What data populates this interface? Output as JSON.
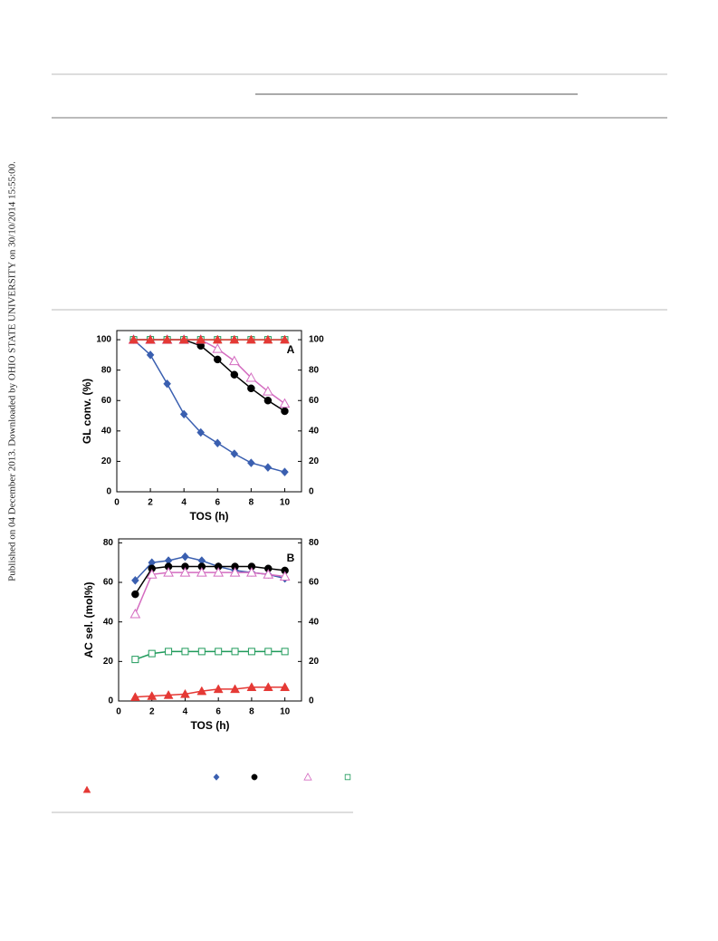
{
  "side_note": "Published on 04 December 2013. Downloaded by OHIO STATE UNIVERSITY on 30/10/2014 15:55:00.",
  "chart_data": [
    {
      "type": "line",
      "panel_label": "A",
      "y_label": "GL conv. (%)",
      "x_label": "TOS (h)",
      "x": [
        1,
        2,
        3,
        4,
        5,
        6,
        7,
        8,
        9,
        10
      ],
      "xlim": [
        0,
        11
      ],
      "xticks": [
        0,
        2,
        4,
        6,
        8,
        10
      ],
      "ylim": [
        0,
        106
      ],
      "yticks": [
        0,
        20,
        40,
        60,
        80,
        100
      ],
      "y2lim": [
        0,
        106
      ],
      "y2ticks": [
        0,
        20,
        40,
        60,
        80,
        100
      ],
      "series": [
        {
          "color": "#3a5fb0",
          "marker": "diamond",
          "values": [
            100,
            90,
            71,
            51,
            39,
            32,
            25,
            19,
            16,
            13
          ]
        },
        {
          "color": "#000000",
          "marker": "circle",
          "values": [
            100,
            100,
            100,
            100,
            96,
            87,
            77,
            68,
            60,
            53
          ]
        },
        {
          "color": "#d46cc0",
          "marker": "triangle-open",
          "values": [
            100,
            100,
            100,
            100,
            100,
            94,
            86,
            75,
            66,
            58
          ]
        },
        {
          "color": "#1e9a5a",
          "marker": "square-open",
          "values": [
            100,
            100,
            100,
            100,
            100,
            100,
            100,
            100,
            100,
            100
          ]
        },
        {
          "color": "#e53935",
          "marker": "triangle",
          "values": [
            100,
            100,
            100,
            100,
            100,
            100,
            100,
            100,
            100,
            100
          ]
        }
      ]
    },
    {
      "type": "line",
      "panel_label": "B",
      "y_label": "AC sel. (mol%)",
      "x_label": "TOS (h)",
      "x": [
        1,
        2,
        3,
        4,
        5,
        6,
        7,
        8,
        9,
        10
      ],
      "xlim": [
        0,
        11
      ],
      "xticks": [
        0,
        2,
        4,
        6,
        8,
        10
      ],
      "ylim": [
        0,
        82
      ],
      "yticks": [
        0,
        20,
        40,
        60,
        80
      ],
      "y2lim": [
        0,
        82
      ],
      "y2ticks": [
        0,
        20,
        40,
        60,
        80
      ],
      "series": [
        {
          "color": "#3a5fb0",
          "marker": "diamond",
          "values": [
            61,
            70,
            71,
            73,
            71,
            68,
            66,
            65,
            64,
            62
          ]
        },
        {
          "color": "#000000",
          "marker": "circle",
          "values": [
            54,
            67,
            68,
            68,
            68,
            68,
            68,
            68,
            67,
            66
          ]
        },
        {
          "color": "#d46cc0",
          "marker": "triangle-open",
          "values": [
            44,
            64,
            65,
            65,
            65,
            65,
            65,
            65,
            64,
            63
          ]
        },
        {
          "color": "#1e9a5a",
          "marker": "square-open",
          "values": [
            21,
            24,
            25,
            25,
            25,
            25,
            25,
            25,
            25,
            25
          ]
        },
        {
          "color": "#e53935",
          "marker": "triangle",
          "values": [
            2,
            2.5,
            3,
            3.5,
            5,
            6,
            6,
            7,
            7,
            7
          ]
        }
      ]
    }
  ]
}
